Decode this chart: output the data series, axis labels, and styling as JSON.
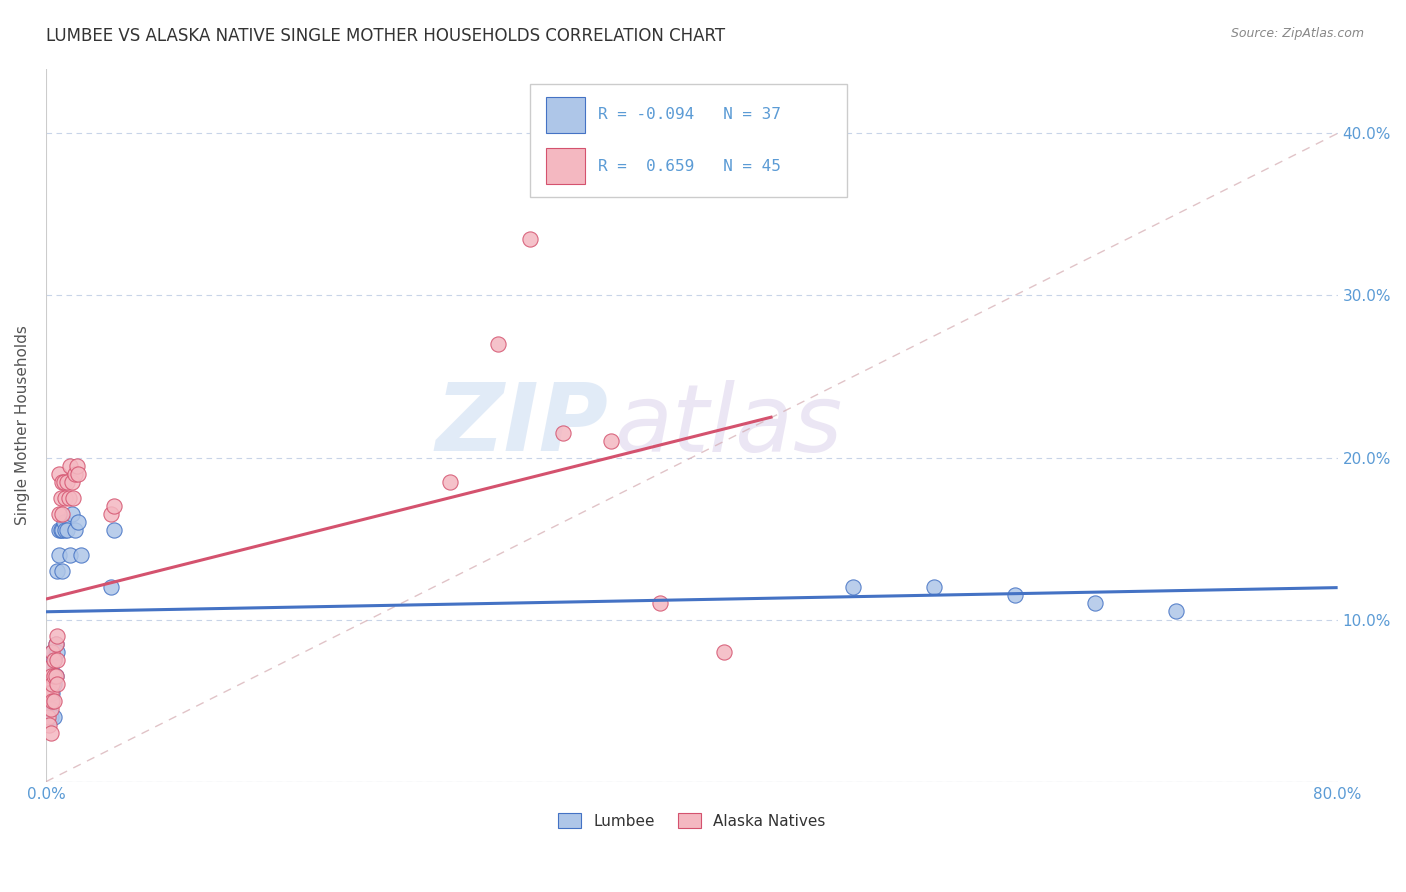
{
  "title": "LUMBEE VS ALASKA NATIVE SINGLE MOTHER HOUSEHOLDS CORRELATION CHART",
  "source": "Source: ZipAtlas.com",
  "ylabel": "Single Mother Households",
  "legend_lumbee": "Lumbee",
  "legend_alaska": "Alaska Natives",
  "lumbee_R": "-0.094",
  "lumbee_N": "37",
  "alaska_R": "0.659",
  "alaska_N": "45",
  "lumbee_color": "#aec6e8",
  "alaska_color": "#f4b8c1",
  "lumbee_line_color": "#4472c4",
  "alaska_line_color": "#d4526e",
  "diagonal_color": "#d4aab0",
  "background_color": "#ffffff",
  "watermark_zip": "ZIP",
  "watermark_atlas": "atlas",
  "lumbee_points_x": [
    0.001,
    0.001,
    0.002,
    0.002,
    0.002,
    0.003,
    0.003,
    0.003,
    0.004,
    0.004,
    0.005,
    0.005,
    0.005,
    0.006,
    0.006,
    0.007,
    0.007,
    0.008,
    0.008,
    0.009,
    0.01,
    0.01,
    0.011,
    0.012,
    0.013,
    0.015,
    0.016,
    0.018,
    0.02,
    0.022,
    0.04,
    0.042,
    0.5,
    0.55,
    0.6,
    0.65,
    0.7
  ],
  "lumbee_points_y": [
    0.065,
    0.055,
    0.075,
    0.06,
    0.045,
    0.07,
    0.05,
    0.04,
    0.08,
    0.055,
    0.075,
    0.06,
    0.04,
    0.085,
    0.065,
    0.13,
    0.08,
    0.155,
    0.14,
    0.155,
    0.155,
    0.13,
    0.16,
    0.155,
    0.155,
    0.14,
    0.165,
    0.155,
    0.16,
    0.14,
    0.12,
    0.155,
    0.12,
    0.12,
    0.115,
    0.11,
    0.105
  ],
  "alaska_points_x": [
    0.001,
    0.001,
    0.001,
    0.002,
    0.002,
    0.002,
    0.003,
    0.003,
    0.003,
    0.003,
    0.004,
    0.004,
    0.004,
    0.005,
    0.005,
    0.005,
    0.006,
    0.006,
    0.007,
    0.007,
    0.007,
    0.008,
    0.008,
    0.009,
    0.01,
    0.01,
    0.011,
    0.012,
    0.013,
    0.014,
    0.015,
    0.016,
    0.017,
    0.018,
    0.019,
    0.02,
    0.04,
    0.042,
    0.25,
    0.28,
    0.3,
    0.32,
    0.35,
    0.38,
    0.42
  ],
  "alaska_points_y": [
    0.06,
    0.055,
    0.04,
    0.07,
    0.055,
    0.035,
    0.065,
    0.055,
    0.045,
    0.03,
    0.08,
    0.06,
    0.05,
    0.075,
    0.065,
    0.05,
    0.085,
    0.065,
    0.09,
    0.075,
    0.06,
    0.19,
    0.165,
    0.175,
    0.185,
    0.165,
    0.185,
    0.175,
    0.185,
    0.175,
    0.195,
    0.185,
    0.175,
    0.19,
    0.195,
    0.19,
    0.165,
    0.17,
    0.185,
    0.27,
    0.335,
    0.215,
    0.21,
    0.11,
    0.08
  ]
}
